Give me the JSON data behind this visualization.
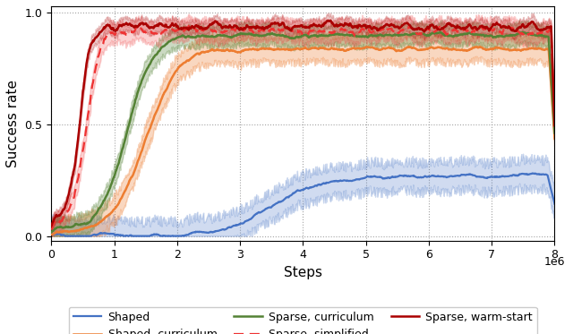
{
  "xlabel": "Steps",
  "ylabel": "Success rate",
  "xlim": [
    0,
    8000000
  ],
  "ylim": [
    -0.02,
    1.03
  ],
  "xtick_vals": [
    0,
    1000000,
    2000000,
    3000000,
    4000000,
    5000000,
    6000000,
    7000000,
    8000000
  ],
  "xtick_labels": [
    "0",
    "1",
    "2",
    "3",
    "4",
    "5",
    "6",
    "7",
    "8"
  ],
  "ytick_vals": [
    0.0,
    0.5,
    1.0
  ],
  "ytick_labels": [
    "0.0",
    "0.5",
    "1.0"
  ],
  "colors": {
    "shaped": "#4472c4",
    "shaped_curriculum": "#ed7d31",
    "sparse_curriculum": "#548235",
    "sparse_simplified": "#ee3333",
    "sparse_warmstart": "#aa0000"
  },
  "legend_labels": [
    "Shaped",
    "Shaped, curriculum",
    "Sparse, curriculum",
    "Sparse, simplified",
    "Sparse, warm-start"
  ],
  "seed": 0
}
